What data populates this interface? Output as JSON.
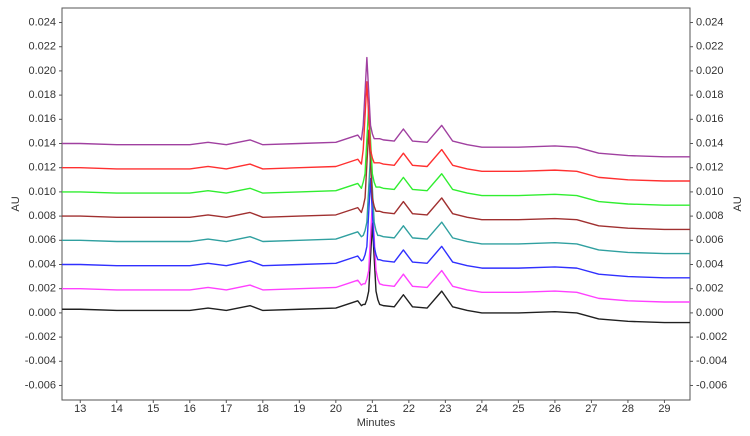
{
  "chart_data": {
    "type": "line",
    "xlabel": "Minutes",
    "ylabel": "AU",
    "y2label": "AU",
    "x": [
      12.5,
      13,
      14,
      15,
      16,
      16.5,
      17,
      17.65,
      18,
      19,
      20,
      20.6,
      20.7,
      20.75,
      20.8,
      20.85,
      20.9,
      20.95,
      21.0,
      21.05,
      21.1,
      21.15,
      21.2,
      21.3,
      21.6,
      21.85,
      22.1,
      22.5,
      22.9,
      23.2,
      23.6,
      24,
      25,
      26,
      26.6,
      27.2,
      28,
      29,
      29.7
    ],
    "xlim": [
      12.5,
      29.7
    ],
    "xticks": [
      13,
      14,
      15,
      16,
      17,
      18,
      19,
      20,
      21,
      22,
      23,
      24,
      25,
      26,
      27,
      28,
      29
    ],
    "ylim": [
      -0.0072,
      0.0252
    ],
    "yticks": [
      {
        "value": -0.006,
        "label": "-0.006"
      },
      {
        "value": -0.004,
        "label": "-0.004"
      },
      {
        "value": -0.002,
        "label": "-0.002"
      },
      {
        "value": 0,
        "label": "0.000"
      },
      {
        "value": 0.002,
        "label": "0.002"
      },
      {
        "value": 0.004,
        "label": "0.004"
      },
      {
        "value": 0.006,
        "label": "0.006"
      },
      {
        "value": 0.008,
        "label": "0.008"
      },
      {
        "value": 0.01,
        "label": "0.010"
      },
      {
        "value": 0.012,
        "label": "0.012"
      },
      {
        "value": 0.014,
        "label": "0.014"
      },
      {
        "value": 0.016,
        "label": "0.016"
      },
      {
        "value": 0.018,
        "label": "0.018"
      },
      {
        "value": 0.02,
        "label": "0.020"
      },
      {
        "value": 0.022,
        "label": "0.022"
      },
      {
        "value": 0.024,
        "label": "0.024"
      }
    ],
    "y2lim": [
      -0.0072,
      0.0252
    ],
    "y2ticks": [
      {
        "value": -0.006,
        "label": "-0.006"
      },
      {
        "value": -0.004,
        "label": "-0.004"
      },
      {
        "value": -0.002,
        "label": "-0.002"
      },
      {
        "value": 0,
        "label": "0.000"
      },
      {
        "value": 0.002,
        "label": "0.002"
      },
      {
        "value": 0.004,
        "label": "0.004"
      },
      {
        "value": 0.006,
        "label": "0.006"
      },
      {
        "value": 0.008,
        "label": "0.008"
      },
      {
        "value": 0.01,
        "label": "0.010"
      },
      {
        "value": 0.012,
        "label": "0.012"
      },
      {
        "value": 0.014,
        "label": "0.014"
      },
      {
        "value": 0.016,
        "label": "0.016"
      },
      {
        "value": 0.018,
        "label": "0.018"
      },
      {
        "value": 0.02,
        "label": "0.020"
      },
      {
        "value": 0.022,
        "label": "0.022"
      },
      {
        "value": 0.024,
        "label": "0.024"
      }
    ],
    "grid": false,
    "series": [
      {
        "color": "#a040a0",
        "values": [
          0.014,
          0.014,
          0.0139,
          0.0139,
          0.0139,
          0.0141,
          0.0139,
          0.0143,
          0.0139,
          0.014,
          0.0141,
          0.0147,
          0.0143,
          0.0155,
          0.0183,
          0.0211,
          0.0183,
          0.0155,
          0.0148,
          0.0144,
          0.0144,
          0.0144,
          0.0144,
          0.0143,
          0.0142,
          0.0152,
          0.0142,
          0.0141,
          0.0155,
          0.0142,
          0.0139,
          0.0137,
          0.0137,
          0.0138,
          0.0137,
          0.0132,
          0.013,
          0.0129,
          0.0129
        ]
      },
      {
        "color": "#ff3030",
        "values": [
          0.012,
          0.012,
          0.0119,
          0.0119,
          0.0119,
          0.0121,
          0.0119,
          0.0123,
          0.0119,
          0.012,
          0.0121,
          0.0127,
          0.0123,
          0.0135,
          0.0163,
          0.0191,
          0.0163,
          0.0135,
          0.0128,
          0.0124,
          0.0124,
          0.0124,
          0.0124,
          0.0123,
          0.0122,
          0.0132,
          0.0122,
          0.0121,
          0.0135,
          0.0122,
          0.0119,
          0.0117,
          0.0117,
          0.0118,
          0.0117,
          0.0112,
          0.011,
          0.0109,
          0.0109
        ]
      },
      {
        "color": "#30ee30",
        "values": [
          0.01,
          0.01,
          0.0099,
          0.0099,
          0.0099,
          0.0101,
          0.0099,
          0.0103,
          0.0099,
          0.01,
          0.0101,
          0.0107,
          0.0103,
          0.0108,
          0.0115,
          0.0143,
          0.0171,
          0.0143,
          0.0115,
          0.0108,
          0.0104,
          0.0104,
          0.0104,
          0.0103,
          0.0102,
          0.0112,
          0.0102,
          0.0101,
          0.0115,
          0.0102,
          0.0099,
          0.0097,
          0.0097,
          0.0098,
          0.0097,
          0.0092,
          0.009,
          0.0089,
          0.0089
        ]
      },
      {
        "color": "#a03030",
        "values": [
          0.008,
          0.008,
          0.0079,
          0.0079,
          0.0079,
          0.0081,
          0.0079,
          0.0083,
          0.0079,
          0.008,
          0.0081,
          0.0087,
          0.0083,
          0.0088,
          0.0095,
          0.0123,
          0.0151,
          0.0123,
          0.0095,
          0.0088,
          0.0084,
          0.0084,
          0.0084,
          0.0083,
          0.0082,
          0.0092,
          0.0082,
          0.0081,
          0.0095,
          0.0082,
          0.0079,
          0.0077,
          0.0077,
          0.0078,
          0.0077,
          0.0072,
          0.007,
          0.0069,
          0.0069
        ]
      },
      {
        "color": "#30a0a0",
        "values": [
          0.006,
          0.006,
          0.0059,
          0.0059,
          0.0059,
          0.0061,
          0.0059,
          0.0063,
          0.0059,
          0.006,
          0.0061,
          0.0067,
          0.0063,
          0.0064,
          0.0068,
          0.0075,
          0.0103,
          0.0131,
          0.0103,
          0.0075,
          0.0068,
          0.0064,
          0.0064,
          0.0063,
          0.0062,
          0.0072,
          0.0062,
          0.0061,
          0.0075,
          0.0062,
          0.0059,
          0.0057,
          0.0057,
          0.0058,
          0.0057,
          0.0052,
          0.005,
          0.0049,
          0.0049
        ]
      },
      {
        "color": "#3030ff",
        "values": [
          0.004,
          0.004,
          0.0039,
          0.0039,
          0.0039,
          0.0041,
          0.0039,
          0.0043,
          0.0039,
          0.004,
          0.0041,
          0.0047,
          0.0043,
          0.0044,
          0.0048,
          0.0055,
          0.0083,
          0.0111,
          0.0083,
          0.0055,
          0.0048,
          0.0044,
          0.0044,
          0.0043,
          0.0042,
          0.0052,
          0.0042,
          0.0041,
          0.0055,
          0.0042,
          0.0039,
          0.0037,
          0.0037,
          0.0038,
          0.0037,
          0.0032,
          0.003,
          0.0029,
          0.0029
        ]
      },
      {
        "color": "#ff40ff",
        "values": [
          0.002,
          0.002,
          0.0019,
          0.0019,
          0.0019,
          0.0021,
          0.0019,
          0.0023,
          0.0019,
          0.002,
          0.0021,
          0.0027,
          0.0023,
          0.0024,
          0.0024,
          0.0028,
          0.0035,
          0.0063,
          0.0091,
          0.0063,
          0.0035,
          0.0028,
          0.0024,
          0.0023,
          0.0022,
          0.0032,
          0.0022,
          0.0021,
          0.0035,
          0.0022,
          0.0019,
          0.0017,
          0.0017,
          0.0018,
          0.0017,
          0.0012,
          0.001,
          0.0009,
          0.0009
        ]
      },
      {
        "color": "#202020",
        "values": [
          0.0003,
          0.0003,
          0.0002,
          0.0002,
          0.0002,
          0.0004,
          0.0002,
          0.0006,
          0.0002,
          0.0003,
          0.0004,
          0.001,
          0.0006,
          0.0007,
          0.0007,
          0.0011,
          0.0018,
          0.0046,
          0.0074,
          0.0046,
          0.0018,
          0.0011,
          0.0007,
          0.0006,
          0.0005,
          0.0015,
          0.0005,
          0.0004,
          0.0018,
          0.0005,
          0.0002,
          0,
          0,
          0.0001,
          0,
          -0.0005,
          -0.0007,
          -0.0008,
          -0.0008
        ]
      }
    ]
  }
}
